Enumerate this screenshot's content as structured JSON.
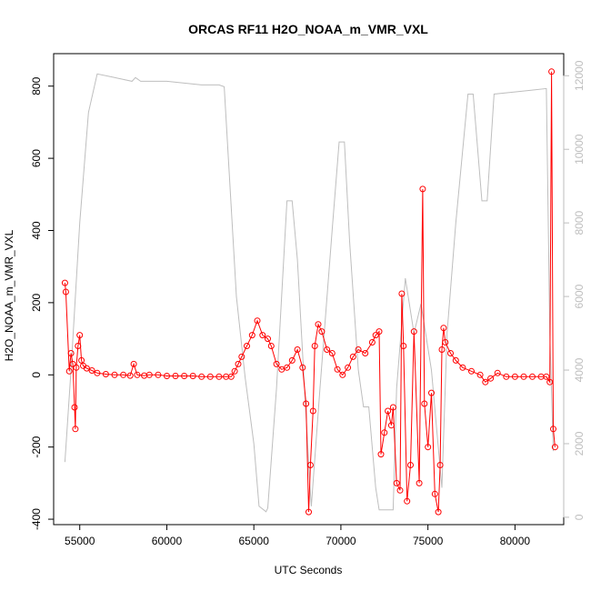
{
  "chart_data": {
    "type": "line",
    "title": "ORCAS RF11 H2O_NOAA_m_VMR_VXL",
    "xlabel": "UTC Seconds",
    "ylabel": "H2O_NOAA_m_VMR_VXL",
    "xlim": [
      53500,
      82800
    ],
    "ylim": [
      -415,
      890
    ],
    "y2lim": [
      -200,
      12600
    ],
    "grid": false,
    "legend": "none",
    "x_ticks": [
      55000,
      60000,
      65000,
      70000,
      75000,
      80000
    ],
    "y_ticks": [
      -400,
      -200,
      0,
      200,
      400,
      600,
      800
    ],
    "y2_ticks": [
      0,
      2000,
      4000,
      6000,
      8000,
      10000,
      12000
    ],
    "colors": {
      "primary": "#ff0000",
      "secondary": "#bebebe",
      "axis": "#000000"
    },
    "series": [
      {
        "role": "primary",
        "style": "line+points",
        "x": [
          54150,
          54200,
          54400,
          54500,
          54600,
          54700,
          54750,
          54800,
          54900,
          55000,
          55100,
          55200,
          55400,
          55700,
          56000,
          56500,
          57000,
          57500,
          57900,
          58100,
          58300,
          58700,
          59000,
          59500,
          60000,
          60500,
          61000,
          61500,
          62000,
          62500,
          63000,
          63400,
          63700,
          63900,
          64100,
          64300,
          64600,
          64900,
          65200,
          65500,
          65800,
          66000,
          66300,
          66600,
          66900,
          67200,
          67500,
          67800,
          68000,
          68150,
          68250,
          68400,
          68500,
          68700,
          68900,
          69200,
          69500,
          69800,
          70100,
          70400,
          70700,
          71000,
          71400,
          71800,
          72000,
          72200,
          72300,
          72500,
          72700,
          72900,
          73000,
          73200,
          73400,
          73500,
          73600,
          73800,
          74000,
          74200,
          74500,
          74700,
          74800,
          75000,
          75200,
          75400,
          75600,
          75700,
          75800,
          75900,
          76000,
          76300,
          76600,
          77000,
          77500,
          78000,
          78300,
          78600,
          79000,
          79500,
          80000,
          80500,
          81000,
          81500,
          81800,
          82000,
          82100,
          82200,
          82300
        ],
        "y": [
          255,
          230,
          10,
          60,
          30,
          -90,
          -150,
          20,
          80,
          110,
          40,
          25,
          18,
          12,
          5,
          2,
          0,
          0,
          -2,
          30,
          0,
          -2,
          0,
          0,
          -3,
          -3,
          -3,
          -3,
          -5,
          -5,
          -5,
          -5,
          -5,
          10,
          30,
          50,
          80,
          110,
          150,
          110,
          100,
          80,
          30,
          15,
          20,
          40,
          70,
          20,
          -80,
          -380,
          -250,
          -100,
          80,
          140,
          120,
          70,
          60,
          15,
          0,
          20,
          50,
          70,
          60,
          90,
          110,
          120,
          -220,
          -160,
          -100,
          -140,
          -90,
          -300,
          -320,
          225,
          80,
          -350,
          -250,
          120,
          -300,
          515,
          -80,
          -200,
          -50,
          -330,
          -380,
          -250,
          70,
          130,
          90,
          60,
          40,
          20,
          10,
          0,
          -20,
          -10,
          5,
          -5,
          -5,
          -5,
          -5,
          -5,
          -5,
          -20,
          840,
          -150,
          -200
        ]
      },
      {
        "role": "secondary",
        "style": "line",
        "x": [
          54150,
          54500,
          55000,
          55500,
          56000,
          57000,
          58000,
          58200,
          58500,
          59000,
          60000,
          61000,
          62000,
          63000,
          63300,
          64000,
          64500,
          65000,
          65300,
          65700,
          65800,
          66300,
          66900,
          67200,
          67500,
          68200,
          68300,
          68800,
          69500,
          69900,
          70200,
          70500,
          71000,
          71300,
          71600,
          72000,
          72200,
          73000,
          73200,
          73700,
          74200,
          74600,
          75200,
          75800,
          76100,
          76600,
          77300,
          77600,
          78100,
          78400,
          78800,
          79800,
          80800,
          81800,
          82000,
          82200
        ],
        "y": [
          1500,
          4000,
          8000,
          11000,
          12050,
          11950,
          11850,
          11950,
          11850,
          11850,
          11850,
          11800,
          11750,
          11750,
          11700,
          6000,
          3800,
          2000,
          300,
          150,
          250,
          3500,
          8600,
          8600,
          7000,
          1000,
          300,
          3500,
          7800,
          10200,
          10200,
          7500,
          4000,
          3000,
          3000,
          800,
          200,
          200,
          3500,
          6500,
          5000,
          5800,
          4000,
          800,
          5000,
          8000,
          11500,
          11500,
          8600,
          8600,
          11500,
          11550,
          11600,
          11650,
          5000,
          1800
        ]
      }
    ]
  }
}
